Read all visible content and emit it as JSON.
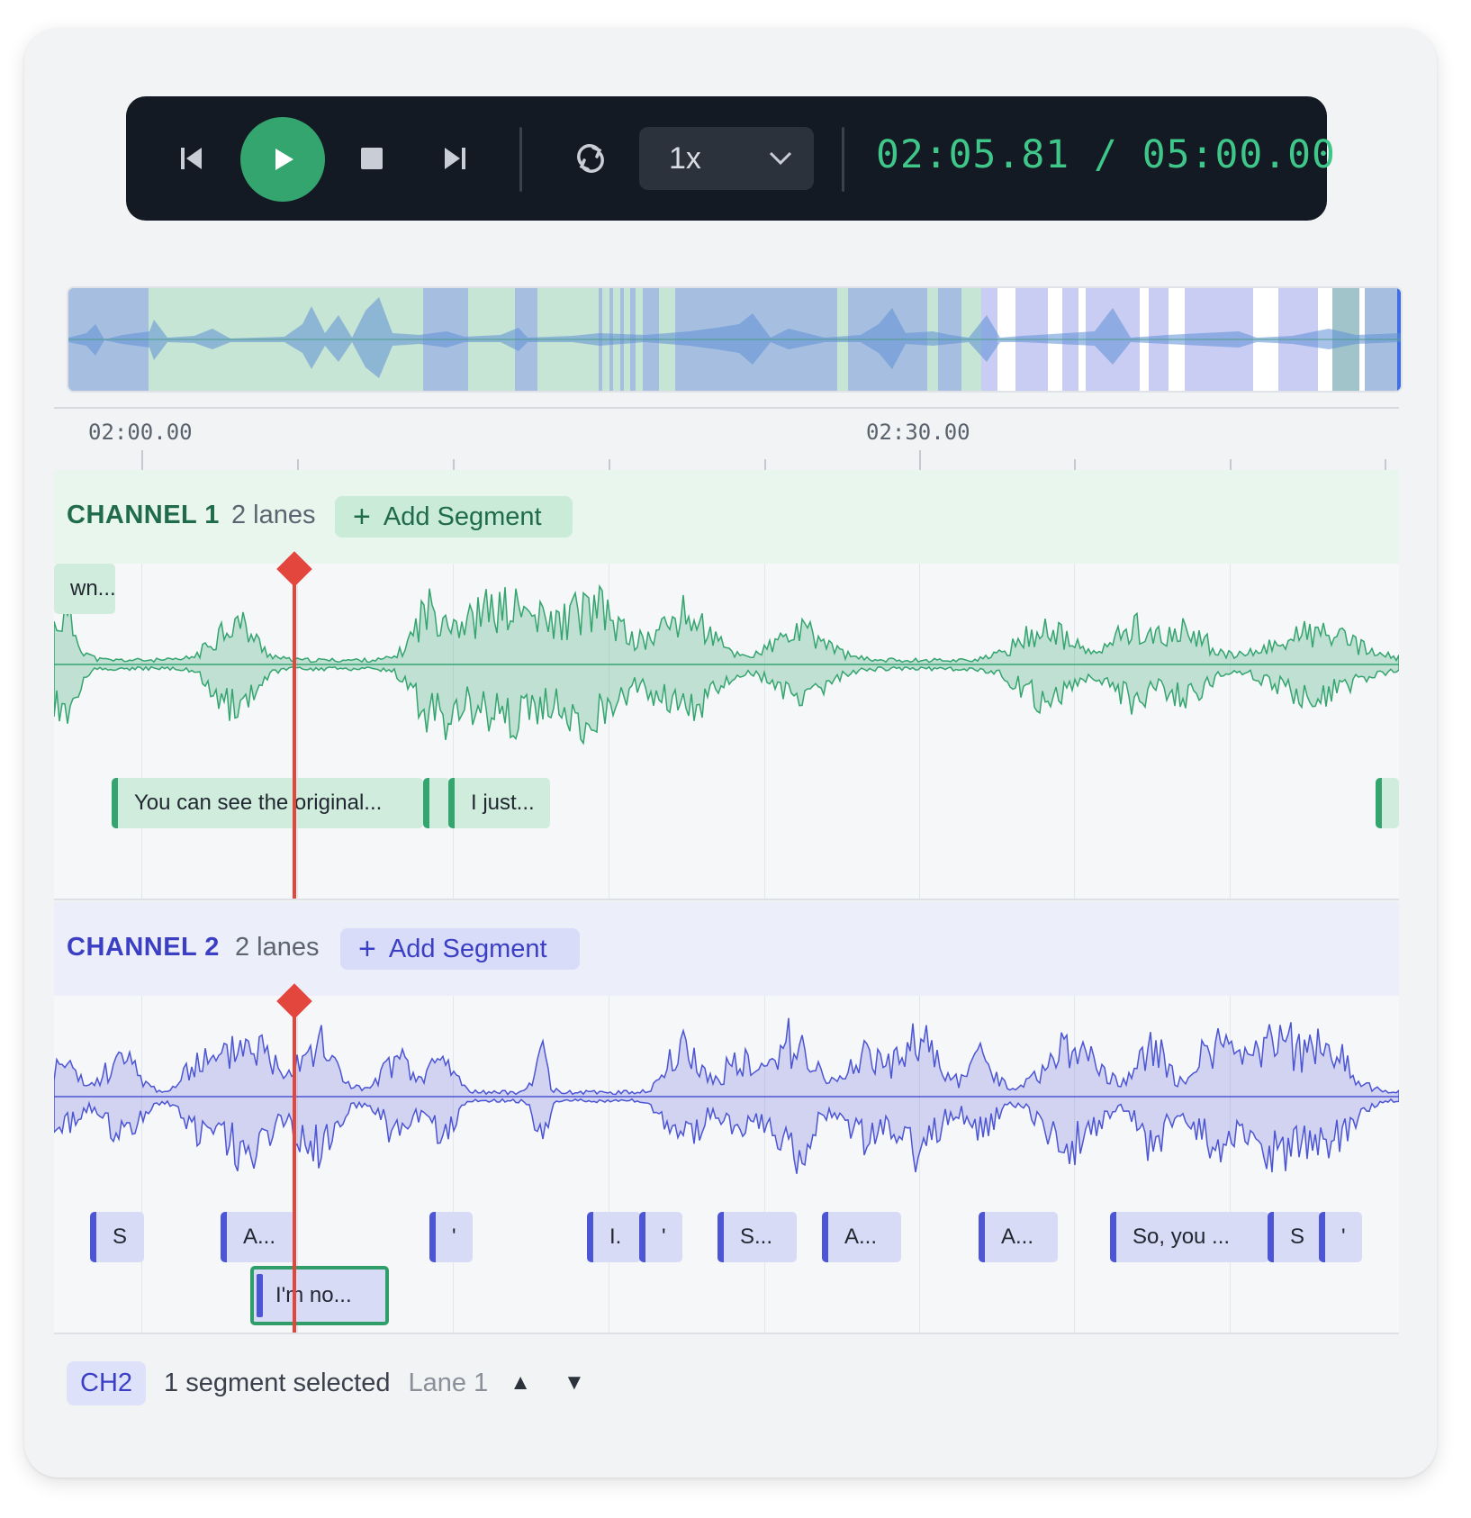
{
  "transport": {
    "speed": "1x",
    "current_time": "02:05.81",
    "time_separator": "/",
    "total_time": "05:00.00",
    "icons": [
      "skip-back-icon",
      "play-icon",
      "stop-icon",
      "skip-forward-icon",
      "loop-icon",
      "chevron-down-icon"
    ],
    "accent_color": "#34a56f"
  },
  "ruler": {
    "labels": [
      "02:00.00",
      "02:30.00"
    ]
  },
  "channels": [
    {
      "title": "CHANNEL 1",
      "lanes": "2 lanes",
      "add_label": "Add Segment",
      "color": "#34a56f",
      "segments": [
        {
          "text": "wn..."
        },
        {
          "text": "You can see the original..."
        },
        {
          "text": ""
        },
        {
          "text": "I just..."
        },
        {
          "text": ""
        }
      ]
    },
    {
      "title": "CHANNEL 2",
      "lanes": "2 lanes",
      "add_label": "Add Segment",
      "color": "#4c55d3",
      "segments": [
        {
          "text": "S"
        },
        {
          "text": "A..."
        },
        {
          "text": "'"
        },
        {
          "text": "I."
        },
        {
          "text": "'"
        },
        {
          "text": "S..."
        },
        {
          "text": "A..."
        },
        {
          "text": "A..."
        },
        {
          "text": "So, you ..."
        },
        {
          "text": "S"
        },
        {
          "text": "'"
        },
        {
          "text": "I'm no..."
        }
      ]
    }
  ],
  "status": {
    "channel_badge": "CH2",
    "selection": "1 segment selected",
    "lane": "Lane 1",
    "up_label": "▲",
    "down_label": "▼"
  }
}
